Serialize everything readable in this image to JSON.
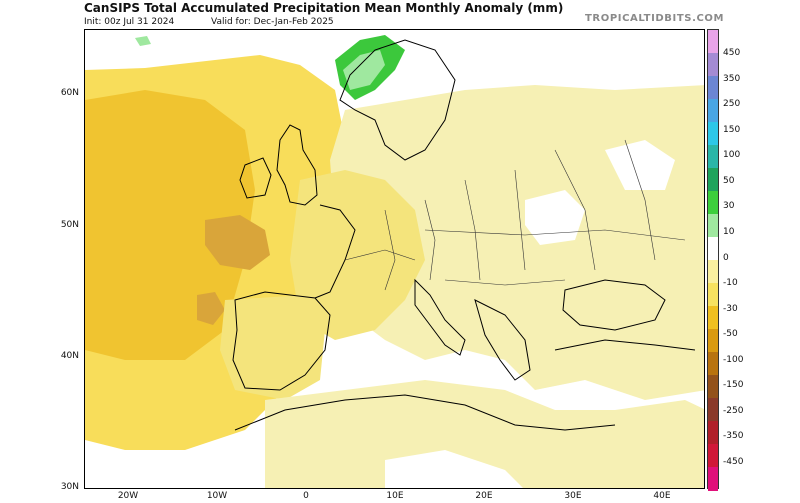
{
  "header": {
    "title": "CanSIPS Total Accumulated Precipitation Mean Monthly Anomaly (mm)",
    "init": "Init: 00z Jul 31 2024",
    "valid": "Valid for: Dec-Jan-Feb 2025",
    "brand": "TROPICALTIDBITS.COM"
  },
  "axes": {
    "lat_labels": [
      "60N",
      "50N",
      "40N",
      "30N"
    ],
    "lon_labels": [
      "20W",
      "10W",
      "0",
      "10E",
      "20E",
      "30E",
      "40E"
    ]
  },
  "colorbar": {
    "labels": [
      "450",
      "350",
      "250",
      "150",
      "100",
      "50",
      "30",
      "10",
      "0",
      "-10",
      "-30",
      "-50",
      "-100",
      "-150",
      "-250",
      "-350",
      "-450"
    ],
    "colors": [
      "#e8a4e8",
      "#a48bd4",
      "#6c86d4",
      "#4aa6e4",
      "#2dc8e8",
      "#2ab6a8",
      "#1fa35c",
      "#3ccf3c",
      "#9fe89f",
      "#ffffff",
      "#faf0a0",
      "#f7e260",
      "#f0c020",
      "#d99a10",
      "#b8730e",
      "#93521a",
      "#8a3a2a",
      "#b0202a",
      "#d01838",
      "#e0107a"
    ]
  },
  "map": {
    "region": "Europe / North Africa",
    "colors": {
      "ocean_anomaly": "#f8dd5a",
      "ocean_strong": "#f0c430",
      "core_dry": "#d9a53a",
      "land_light": "#f6f0b4",
      "land_mid": "#f4e47c",
      "wet_norway": "#3cc83c",
      "near_zero": "#ffffff"
    }
  }
}
